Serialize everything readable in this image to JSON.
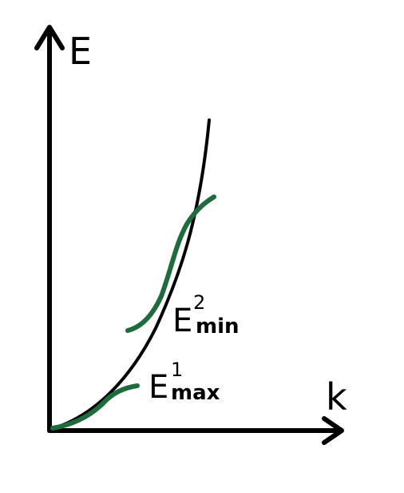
{
  "axes": {
    "y_label": "E",
    "x_label": "k"
  },
  "labels": {
    "e2_base": "E",
    "e2_sup": "2",
    "e2_sub": "min",
    "e1_base": "E",
    "e1_sup": "1",
    "e1_sub": "max"
  },
  "colors": {
    "axis": "#000000",
    "free_curve": "#000000",
    "band": "#1f6b3d"
  }
}
